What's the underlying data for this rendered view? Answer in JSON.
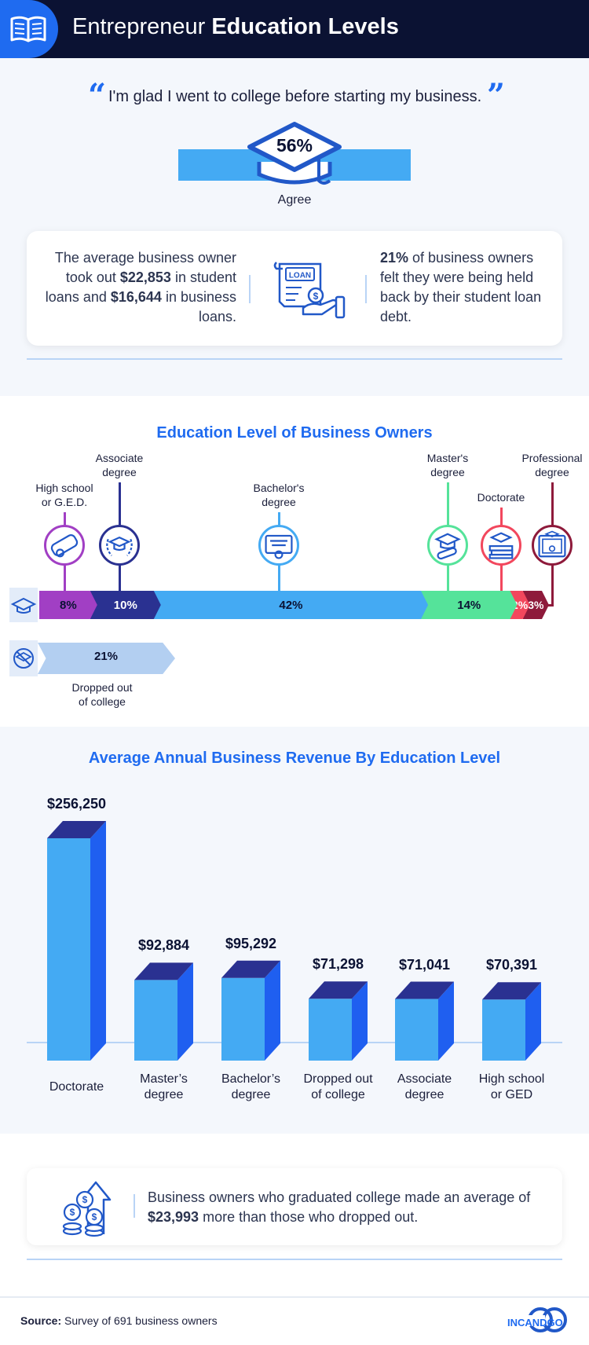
{
  "header": {
    "title_light": "Entrepreneur",
    "title_bold": "Education Levels",
    "icon": "open-book-icon"
  },
  "quote": {
    "open_mark": "“",
    "close_mark": "”",
    "text": "I'm glad I went to college before starting my business.",
    "percent": "56%",
    "label": "Agree"
  },
  "loans": {
    "left_parts": [
      "The average business owner took out ",
      "$22,853",
      " in student loans and ",
      "$16,644",
      " in business loans."
    ],
    "icon": "loan-document-icon",
    "icon_text": "LOAN",
    "right_parts": [
      "21%",
      " of business owners felt they were being held back by their student loan debt."
    ]
  },
  "colors": {
    "accent": "#1f6bf0",
    "navy": "#0b1233",
    "bar": "#44aaf3",
    "bar_top": "#2a3191",
    "bar_side": "#1f5ff0"
  },
  "chart_data": [
    {
      "type": "bar",
      "title": "Education Level of Business Owners",
      "categories": [
        "High school or G.E.D.",
        "Associate degree",
        "Bachelor's degree",
        "Master's degree",
        "Doctorate",
        "Professional degree"
      ],
      "label_lines": [
        [
          "High school",
          "or G.E.D."
        ],
        [
          "Associate",
          "degree"
        ],
        [
          "Bachelor's",
          "degree"
        ],
        [
          "Master's",
          "degree"
        ],
        [
          "Doctorate"
        ],
        [
          "Professional",
          "degree"
        ]
      ],
      "values": [
        8,
        10,
        42,
        14,
        2,
        3
      ],
      "value_labels": [
        "8%",
        "10%",
        "42%",
        "14%",
        "2%",
        "3%"
      ],
      "colors": [
        "#a13fc4",
        "#2a3191",
        "#44aaf3",
        "#55e39a",
        "#f2475d",
        "#8e1a3b"
      ],
      "icons": [
        "diploma-scroll-icon",
        "graduation-laurel-icon",
        "certificate-icon",
        "graduation-cap-scroll-icon",
        "books-cap-icon",
        "framed-certificate-icon"
      ],
      "row_icon": "graduation-cap-icon",
      "dropped_out": {
        "label_lines": [
          "Dropped out",
          "of college"
        ],
        "value": 21,
        "value_label": "21%",
        "icon": "cap-crossed-icon"
      }
    },
    {
      "type": "bar",
      "title": "Average Annual Business Revenue By Education Level",
      "categories": [
        "Doctorate",
        "Master’s degree",
        "Bachelor’s degree",
        "Dropped out of college",
        "Associate degree",
        "High school or GED"
      ],
      "label_lines": [
        [
          "Doctorate"
        ],
        [
          "Master’s",
          "degree"
        ],
        [
          "Bachelor’s",
          "degree"
        ],
        [
          "Dropped out",
          "of college"
        ],
        [
          "Associate",
          "degree"
        ],
        [
          "High school",
          "or GED"
        ]
      ],
      "values": [
        256250,
        92884,
        95292,
        71298,
        71041,
        70391
      ],
      "value_labels": [
        "$256,250",
        "$92,884",
        "$95,292",
        "$71,298",
        "$71,041",
        "$70,391"
      ]
    }
  ],
  "graduates": {
    "icon": "coins-growth-icon",
    "parts": [
      "Business owners who graduated college made an average of ",
      "$23,993",
      " more than those who dropped out."
    ]
  },
  "footer": {
    "source_label": "Source:",
    "source_text": " Survey of 691 business owners",
    "brand": "INCANDGO"
  }
}
